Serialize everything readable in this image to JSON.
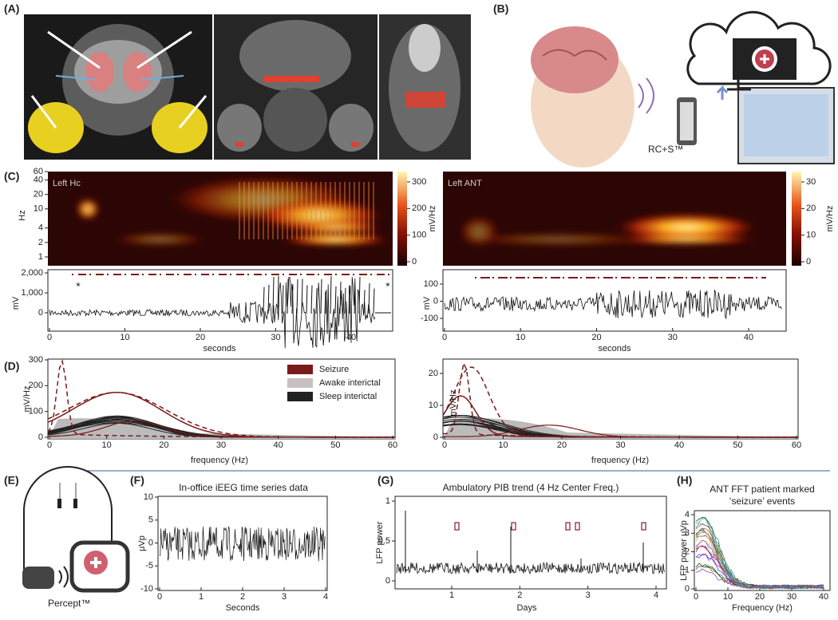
{
  "panel_labels": [
    "(A)",
    "(B)",
    "(C)",
    "(D)",
    "(E)",
    "(F)",
    "(G)",
    "(H)"
  ],
  "B": {
    "device": "RC+S™"
  },
  "C": {
    "left": {
      "spectrogram": {
        "label": "Left Hc",
        "ylabel": "Hz",
        "yticks": [
          1,
          2,
          4,
          10,
          20,
          40,
          60
        ],
        "cbar_ticks": [
          0,
          100,
          200,
          300
        ],
        "cbar_label": "mV/Hz"
      },
      "trace": {
        "ylabel": "mV",
        "yticks": [
          0,
          {
            "value": 1000,
            "label": "1,000"
          },
          {
            "value": 2000,
            "label": "2,000"
          }
        ],
        "xticks": [
          0,
          10,
          20,
          30,
          40
        ],
        "xlabel": "seconds",
        "markers": [
          "*",
          "*"
        ]
      }
    },
    "right": {
      "spectrogram": {
        "label": "Left ANT",
        "cbar_ticks": [
          0,
          10,
          20,
          30
        ],
        "cbar_label": "mV/Hz"
      },
      "trace": {
        "ylabel": "mV",
        "yticks": [
          -100,
          0,
          100
        ],
        "xticks": [
          0,
          10,
          20,
          30,
          40
        ],
        "xlabel": "seconds"
      }
    }
  },
  "D": {
    "legend": [
      "Seizure",
      "Awake interictal",
      "Sleep interictal"
    ],
    "left": {
      "ylabel": "mV/Hz",
      "yticks": [
        0,
        100,
        200,
        300
      ],
      "xticks": [
        0,
        10,
        20,
        30,
        40,
        50,
        60
      ],
      "xlabel": "frequency (Hz)"
    },
    "right": {
      "ylabel": "mV/Hz",
      "yticks": [
        0,
        10,
        20
      ],
      "xticks": [
        0,
        10,
        20,
        30,
        40,
        50,
        60
      ],
      "xlabel": "frequency (Hz)"
    }
  },
  "E": {
    "device": "Percept™"
  },
  "F": {
    "title": "In-office iEEG time series data",
    "ylabel": "μVp",
    "yticks": [
      -10,
      -5,
      0,
      5,
      10
    ],
    "xticks": [
      0,
      1,
      2,
      3,
      4
    ],
    "xlabel": "Seconds"
  },
  "G": {
    "title": "Ambulatory PIB trend (4 Hz Center Freq.)",
    "ylabel": "LFP power",
    "yticks": [
      0,
      0.5,
      1
    ],
    "xticks": [
      1,
      2,
      3,
      4
    ],
    "xlabel": "Days"
  },
  "H": {
    "title_lines": [
      "ANT FFT patient marked",
      "‘seizure’ events"
    ],
    "ylabel": "LFP power μVp",
    "yticks": [
      0,
      1,
      2,
      3,
      4
    ],
    "xticks": [
      0,
      10,
      20,
      30,
      40
    ],
    "xlabel": "Frequency (Hz)"
  }
}
